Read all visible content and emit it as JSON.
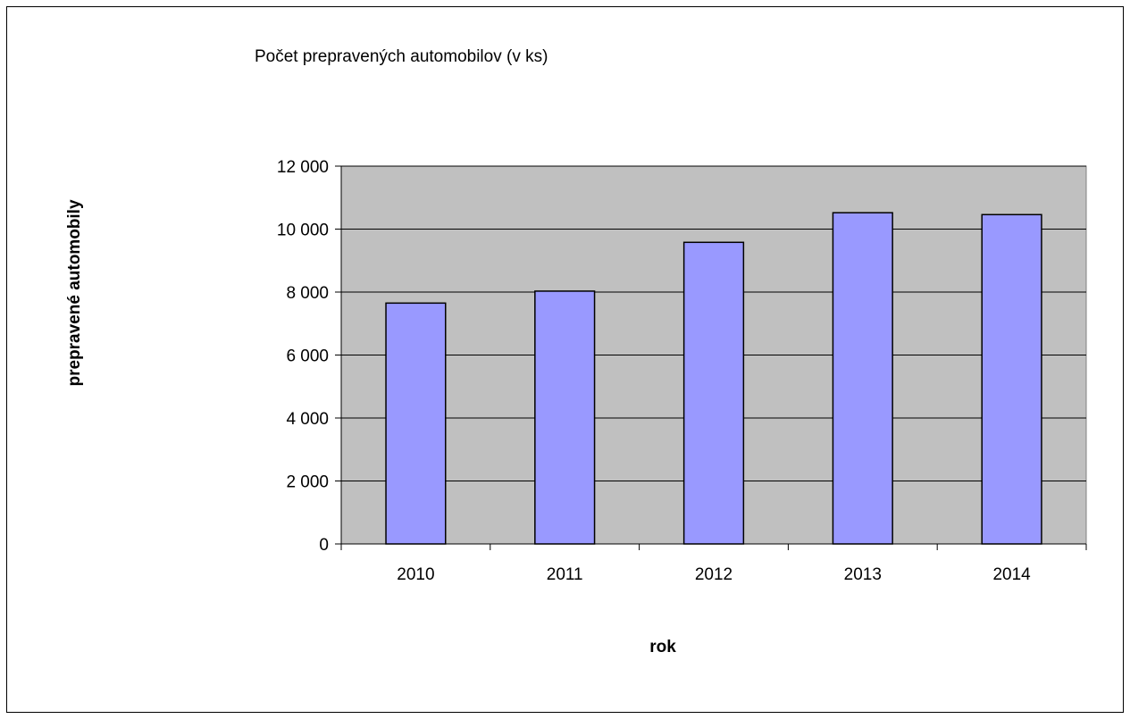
{
  "chart_data": {
    "type": "bar",
    "title": "Počet prepravených automobilov (v ks)",
    "xlabel": "rok",
    "ylabel": "prepravené automobily",
    "categories": [
      "2010",
      "2011",
      "2012",
      "2013",
      "2014"
    ],
    "values": [
      7650,
      8030,
      9580,
      10520,
      10460
    ],
    "ylim": [
      0,
      12000
    ],
    "yticks": [
      0,
      2000,
      4000,
      6000,
      8000,
      10000,
      12000
    ],
    "ytick_labels": [
      "0",
      "2 000",
      "4 000",
      "6 000",
      "8 000",
      "10 000",
      "12 000"
    ],
    "grid": true,
    "legend": "none",
    "colors": {
      "bar_fill": "#9999ff",
      "bar_stroke": "#000000",
      "plot_background": "#c0c0c0",
      "gridline": "#000000"
    }
  }
}
